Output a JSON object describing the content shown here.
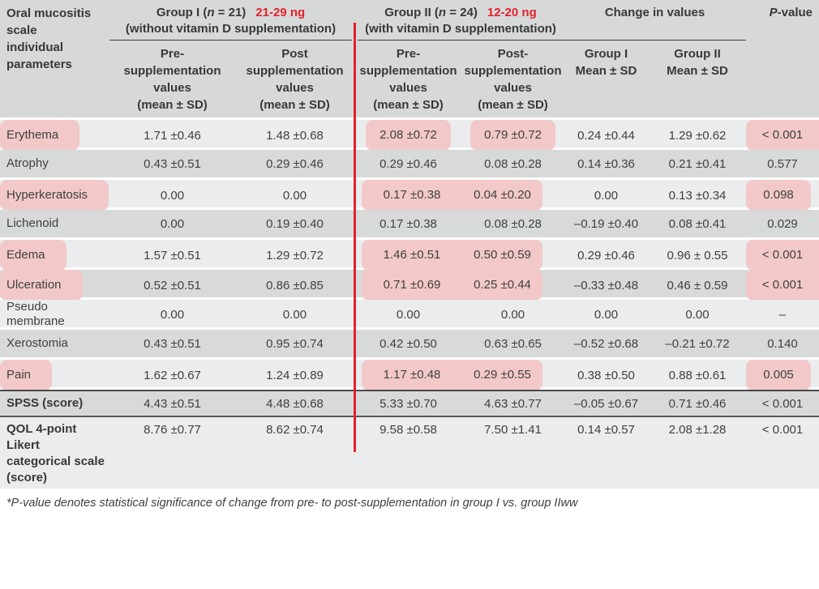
{
  "header": {
    "corner": "Oral mucositis\nscale\nindividual\nparameters",
    "groups": [
      {
        "pre_n": "Group I (",
        "n": "n",
        "post_n": " = 21)",
        "range": "21-29 ng",
        "sub": "(without vitamin D supplementation)"
      },
      {
        "pre_n": "Group II (",
        "n": "n",
        "post_n": " = 24)",
        "range": "12-20 ng",
        "sub": "(with vitamin D supplementation)"
      }
    ],
    "change": "Change in values",
    "pvalue": {
      "p": "P",
      "rest": "-value"
    },
    "subheaders": [
      "Pre-\nsupplementation\nvalues\n(mean ± SD)",
      "Post\nsupplementation\nvalues\n(mean ± SD)",
      "Pre-\nsupplementation\nvalues\n(mean ± SD)",
      "Post-\nsupplementation\nvalues\n(mean ± SD)",
      "Group I\nMean ± SD",
      "Group II\nMean ± SD"
    ]
  },
  "accent_colors": {
    "red": "#e4212a",
    "highlight_pink": "#f2c9c8",
    "row_light": "#ebeced",
    "row_dark": "#d8dada"
  },
  "rows": [
    {
      "id": "erythema",
      "label": "Erythema",
      "values": [
        "1.71 ±0.46",
        "1.48 ±0.68",
        "2.08 ±0.72",
        "0.79 ±0.72",
        "0.24 ±0.44",
        "1.29 ±0.62",
        "< 0.001"
      ],
      "highlight": {
        "label": true,
        "cells": "separate",
        "p": "edge"
      }
    },
    {
      "id": "atrophy",
      "label": "Atrophy",
      "values": [
        "0.43 ±0.51",
        "0.29 ±0.46",
        "0.29 ±0.46",
        "0.08 ±0.28",
        "0.14 ±0.36",
        "0.21 ±0.41",
        "0.577"
      ],
      "highlight": {
        "label": false,
        "cells": "none",
        "p": "none"
      }
    },
    {
      "id": "hyperkeratosis",
      "label": "Hyperkeratosis",
      "values": [
        "0.00",
        "0.00",
        "0.17 ±0.38",
        "0.04 ±0.20",
        "0.00",
        "0.13 ±0.34",
        "0.098"
      ],
      "highlight": {
        "label": true,
        "cells": "continuous",
        "p": "rounded"
      }
    },
    {
      "id": "lichenoid",
      "label": "Lichenoid",
      "values": [
        "0.00",
        "0.19 ±0.40",
        "0.17 ±0.38",
        "0.08 ±0.28",
        "–0.19 ±0.40",
        "0.08 ±0.41",
        "0.029"
      ],
      "highlight": {
        "label": false,
        "cells": "none",
        "p": "none"
      }
    },
    {
      "id": "edema",
      "label": "Edema",
      "values": [
        "1.57 ±0.51",
        "1.29 ±0.72",
        "1.46 ±0.51",
        "0.50 ±0.59",
        "0.29 ±0.46",
        "0.96 ± 0.55",
        "< 0.001"
      ],
      "highlight": {
        "label": true,
        "cells": "continuous",
        "p": "edge"
      }
    },
    {
      "id": "ulceration",
      "label": "Ulceration",
      "values": [
        "0.52 ±0.51",
        "0.86 ±0.85",
        "0.71 ±0.69",
        "0.25 ±0.44",
        "–0.33 ±0.48",
        "0.46 ± 0.59",
        "< 0.001"
      ],
      "highlight": {
        "label": true,
        "cells": "continuous",
        "p": "edge"
      }
    },
    {
      "id": "pseudo-membrane",
      "label": "Pseudo\nmembrane",
      "values": [
        "0.00",
        "0.00",
        "0.00",
        "0.00",
        "0.00",
        "0.00",
        "–"
      ],
      "highlight": {
        "label": false,
        "cells": "none",
        "p": "none"
      }
    },
    {
      "id": "xerostomia",
      "label": "Xerostomia",
      "values": [
        "0.43 ±0.51",
        "0.95 ±0.74",
        "0.42 ±0.50",
        "0.63 ±0.65",
        "–0.52 ±0.68",
        "–0.21 ±0.72",
        "0.140"
      ],
      "highlight": {
        "label": false,
        "cells": "none",
        "p": "none"
      }
    },
    {
      "id": "pain",
      "label": "Pain",
      "values": [
        "1.62 ±0.67",
        "1.24 ±0.89",
        "1.17 ±0.48",
        "0.29 ±0.55",
        "0.38 ±0.50",
        "0.88 ±0.61",
        "0.005"
      ],
      "highlight": {
        "label": true,
        "cells": "continuous",
        "p": "rounded"
      }
    },
    {
      "id": "spss",
      "label": "SPSS (score)",
      "values": [
        "4.43 ±0.51",
        "4.48 ±0.68",
        "5.33 ±0.70",
        "4.63 ±0.77",
        "–0.05 ±0.67",
        "0.71 ±0.46",
        "< 0.001"
      ],
      "highlight": {
        "label": false,
        "cells": "none",
        "p": "none"
      }
    },
    {
      "id": "qol",
      "label": "QOL 4-point\nLikert\ncategorical scale\n(score)",
      "values": [
        "8.76 ±0.77",
        "8.62 ±0.74",
        "9.58 ±0.58",
        "7.50 ±1.41",
        "0.14 ±0.57",
        "2.08 ±1.28",
        "< 0.001"
      ],
      "highlight": {
        "label": false,
        "cells": "none",
        "p": "none"
      }
    }
  ],
  "footnote": "*P-value denotes statistical significance of change from pre- to post-supplementation in group I vs. group IIww"
}
